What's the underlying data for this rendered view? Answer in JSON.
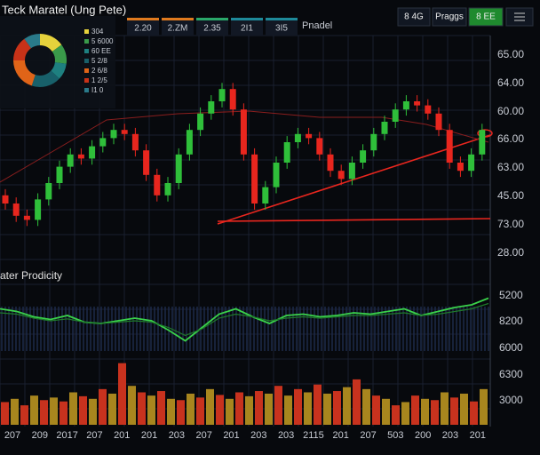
{
  "header": {
    "title": "Teck Maratel (Ung Pete)",
    "tabs": [
      "2.20",
      "2.ZM",
      "2.35",
      "2I1",
      "3I5"
    ],
    "tab_colors": [
      "#e07a1e",
      "#e07a1e",
      "#2aa86a",
      "#1e8a9a",
      "#1e8a9a"
    ],
    "side_label": "Pnadel",
    "buttons": [
      "8 4G",
      "Praggs",
      "8 EE"
    ]
  },
  "donut": {
    "values": [
      15,
      12,
      10,
      18,
      20,
      15,
      10
    ],
    "colors": [
      "#e6d23c",
      "#3a9a4a",
      "#1e8080",
      "#18606a",
      "#e06418",
      "#c83218",
      "#2a7a8a"
    ],
    "legend": [
      "304",
      "5 6000",
      "60 EE",
      "5 2/8",
      "2 6/8",
      "1 2/5",
      "I1 0"
    ]
  },
  "price_chart": {
    "type": "candlestick",
    "ylim": [
      0,
      100
    ],
    "up_color": "#2fbf3a",
    "down_color": "#e8261e",
    "open": [
      24,
      20,
      14,
      12,
      22,
      30,
      38,
      44,
      42,
      48,
      52,
      56,
      54,
      46,
      34,
      24,
      30,
      44,
      56,
      64,
      70,
      76,
      66,
      44,
      20,
      28,
      40,
      50,
      54,
      52,
      44,
      36,
      32,
      40,
      46,
      54,
      60,
      66,
      70,
      68,
      64,
      56,
      40,
      36,
      44
    ],
    "close": [
      20,
      14,
      12,
      22,
      30,
      38,
      44,
      42,
      48,
      52,
      56,
      54,
      46,
      34,
      24,
      30,
      44,
      56,
      64,
      70,
      76,
      66,
      44,
      20,
      28,
      40,
      50,
      54,
      52,
      44,
      36,
      32,
      40,
      46,
      54,
      60,
      66,
      70,
      68,
      64,
      56,
      40,
      36,
      44,
      56
    ],
    "high": [
      27,
      23,
      17,
      25,
      33,
      41,
      47,
      47,
      51,
      55,
      59,
      59,
      57,
      49,
      37,
      33,
      47,
      59,
      67,
      73,
      79,
      79,
      69,
      47,
      31,
      43,
      53,
      57,
      57,
      55,
      47,
      39,
      43,
      49,
      57,
      63,
      69,
      73,
      73,
      71,
      67,
      59,
      43,
      47,
      59
    ],
    "low": [
      17,
      11,
      9,
      9,
      19,
      27,
      35,
      39,
      39,
      45,
      49,
      51,
      43,
      31,
      21,
      21,
      27,
      41,
      53,
      61,
      67,
      63,
      41,
      17,
      17,
      25,
      37,
      47,
      49,
      41,
      33,
      29,
      29,
      37,
      43,
      51,
      57,
      63,
      65,
      61,
      53,
      37,
      33,
      33,
      41
    ],
    "axis_labels": [
      "65.00",
      "64.00",
      "60.00",
      "66.00",
      "63.00",
      "45.00",
      "73.00",
      "28.00"
    ]
  },
  "indicator": {
    "title": "ater Prodicity",
    "ylim": [
      0,
      100
    ],
    "series": [
      {
        "color": "#3ad24a",
        "values": [
          70,
          66,
          58,
          54,
          60,
          50,
          48,
          52,
          56,
          52,
          38,
          22,
          42,
          62,
          70,
          58,
          48,
          60,
          62,
          58,
          60,
          64,
          62,
          66,
          70,
          60,
          66,
          72,
          76,
          86
        ]
      },
      {
        "color": "#1e7a2a",
        "values": [
          64,
          62,
          56,
          52,
          55,
          50,
          48,
          50,
          52,
          50,
          42,
          30,
          40,
          56,
          62,
          58,
          52,
          56,
          58,
          56,
          58,
          60,
          60,
          62,
          64,
          60,
          62,
          66,
          70,
          78
        ]
      }
    ],
    "axis_labels": [
      "5200",
      "8200",
      "6000"
    ]
  },
  "volume": {
    "ylim": [
      0,
      100
    ],
    "colors": [
      "#c8321e",
      "#a8861e"
    ],
    "values": [
      35,
      40,
      30,
      45,
      38,
      42,
      36,
      50,
      44,
      40,
      55,
      48,
      95,
      60,
      50,
      45,
      52,
      40,
      38,
      48,
      42,
      55,
      46,
      40,
      50,
      44,
      52,
      48,
      60,
      45,
      55,
      50,
      62,
      48,
      52,
      58,
      70,
      55,
      45,
      40,
      30,
      35,
      45,
      40,
      38,
      50,
      42,
      48,
      36,
      55
    ],
    "axis_labels": [
      "6300",
      "3000"
    ]
  },
  "x_labels": [
    "207",
    "209",
    "2017",
    "207",
    "201",
    "201",
    "203",
    "207",
    "201",
    "203",
    "203",
    "2115",
    "201",
    "207",
    "503",
    "200",
    "203",
    "201"
  ]
}
